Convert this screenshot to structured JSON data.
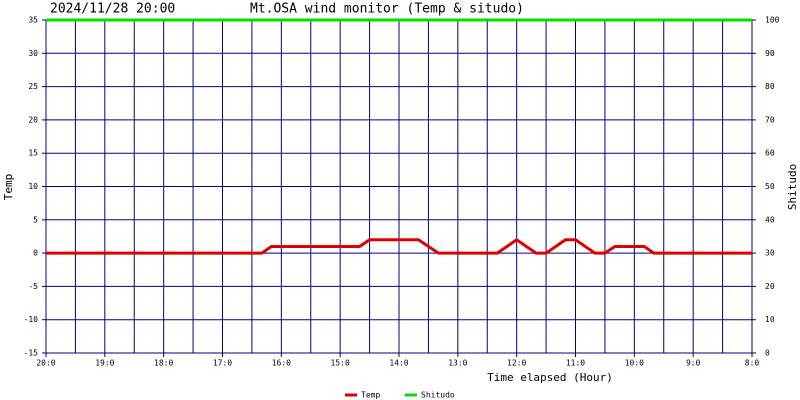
{
  "chart_data": {
    "type": "line",
    "date": "2024/11/28 20:00",
    "title": "Mt.OSA wind monitor (Temp & situdo)",
    "x_label": "Time elapsed (Hour)",
    "y_label": "Temp",
    "y2_label": "Shitudo",
    "xlim": [
      0,
      12
    ],
    "xticks": [
      {
        "value": 0,
        "label": "20:0"
      },
      {
        "value": 1,
        "label": "19:0"
      },
      {
        "value": 2,
        "label": "18:0"
      },
      {
        "value": 3,
        "label": "17:0"
      },
      {
        "value": 4,
        "label": "16:0"
      },
      {
        "value": 5,
        "label": "15:0"
      },
      {
        "value": 6,
        "label": "14:0"
      },
      {
        "value": 7,
        "label": "13:0"
      },
      {
        "value": 8,
        "label": "12:0"
      },
      {
        "value": 9,
        "label": "11:0"
      },
      {
        "value": 10,
        "label": "10:0"
      },
      {
        "value": 11,
        "label": "9:0"
      },
      {
        "value": 12,
        "label": "8:0"
      }
    ],
    "ylim": [
      -15,
      35
    ],
    "yticks": [
      -15,
      -10,
      -5,
      0,
      5,
      10,
      15,
      20,
      25,
      30,
      35
    ],
    "y2lim": [
      0,
      100
    ],
    "y2ticks": [
      0,
      10,
      20,
      30,
      40,
      50,
      60,
      70,
      80,
      90,
      100
    ],
    "grid": true,
    "grid_color": "#000080",
    "series": [
      {
        "name": "Temp",
        "color": "#e00000",
        "x": [
          0,
          3.67,
          3.83,
          5.33,
          5.5,
          6.33,
          6.67,
          7.67,
          8,
          8.33,
          8.5,
          8.83,
          9,
          9.33,
          9.5,
          9.67,
          10.17,
          10.33,
          12
        ],
        "values": [
          0,
          0,
          1,
          1,
          2,
          2,
          0,
          0,
          2,
          0,
          0,
          2,
          2,
          0,
          0,
          1,
          1,
          0,
          0
        ]
      },
      {
        "name": "Shitudo",
        "color": "#00e000",
        "axis": "y2",
        "x": [
          0,
          12
        ],
        "values": [
          100,
          100
        ]
      }
    ]
  }
}
